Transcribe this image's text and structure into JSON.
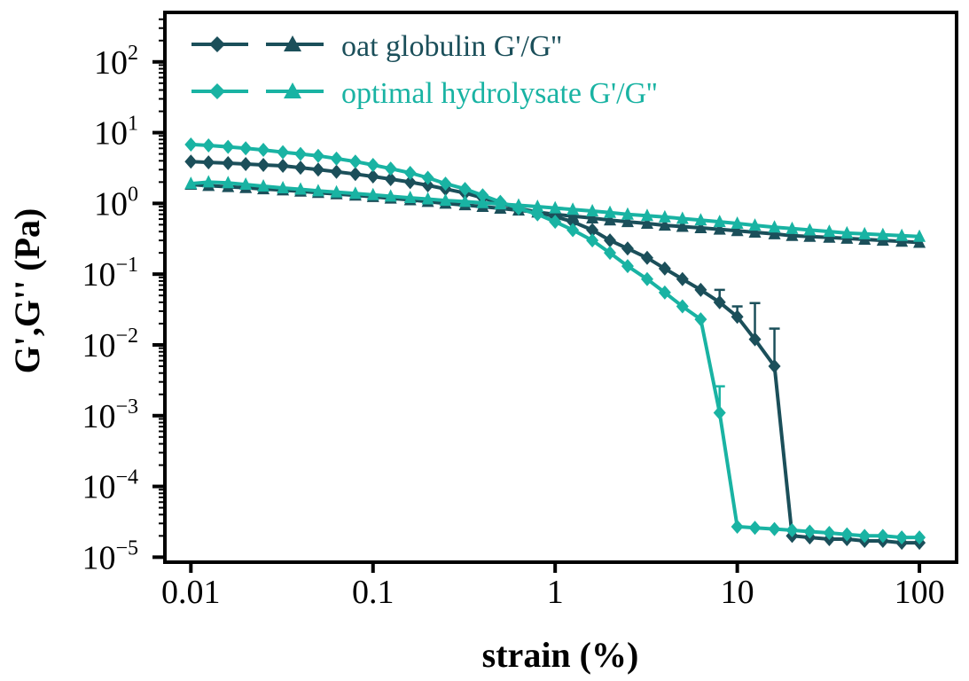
{
  "chart_data": {
    "type": "line",
    "x_scale": "log",
    "y_scale": "log",
    "xlabel": "strain (%)",
    "ylabel": "G',G'' (Pa)",
    "xlim": [
      0.0072,
      160
    ],
    "ylim": [
      8.5e-06,
      500
    ],
    "x_ticks": [
      {
        "value": 0.01,
        "label": "0.01"
      },
      {
        "value": 0.1,
        "label": "0.1"
      },
      {
        "value": 1,
        "label": "1"
      },
      {
        "value": 10,
        "label": "10"
      },
      {
        "value": 100,
        "label": "100"
      }
    ],
    "y_ticks": [
      {
        "value": 100,
        "base": "10",
        "exp": "2"
      },
      {
        "value": 10,
        "base": "10",
        "exp": "1"
      },
      {
        "value": 1,
        "base": "10",
        "exp": "0"
      },
      {
        "value": 0.1,
        "base": "10",
        "exp": "−1"
      },
      {
        "value": 0.01,
        "base": "10",
        "exp": "−2"
      },
      {
        "value": 0.001,
        "base": "10",
        "exp": "−3"
      },
      {
        "value": 0.0001,
        "base": "10",
        "exp": "−4"
      },
      {
        "value": 1e-05,
        "base": "10",
        "exp": "−5"
      }
    ],
    "legend": {
      "placement": "top-left",
      "entries": [
        {
          "label": "oat globulin G'/G''",
          "color": "#1b4f5a"
        },
        {
          "label": "optimal hydrolysate G'/G''",
          "color": "#19b3a3"
        }
      ]
    },
    "colors": {
      "oat": "#1b4f5a",
      "hydro": "#19b3a3"
    },
    "series": [
      {
        "name": "oat globulin G'",
        "color": "#1b4f5a",
        "marker": "diamond",
        "x": [
          0.01,
          0.0125,
          0.016,
          0.02,
          0.025,
          0.032,
          0.04,
          0.05,
          0.063,
          0.08,
          0.1,
          0.125,
          0.16,
          0.2,
          0.25,
          0.32,
          0.4,
          0.5,
          0.63,
          0.8,
          1.0,
          1.25,
          1.6,
          2.0,
          2.5,
          3.2,
          4.0,
          5.0,
          6.3,
          8.0,
          10,
          12.5,
          16,
          20,
          25,
          32,
          40,
          50,
          63,
          80,
          100
        ],
        "y": [
          3.9,
          3.8,
          3.7,
          3.6,
          3.5,
          3.4,
          3.2,
          3.0,
          2.8,
          2.6,
          2.4,
          2.2,
          2.0,
          1.8,
          1.6,
          1.4,
          1.2,
          1.0,
          0.85,
          0.75,
          0.65,
          0.55,
          0.42,
          0.3,
          0.23,
          0.17,
          0.12,
          0.085,
          0.06,
          0.04,
          0.025,
          0.012,
          0.005,
          2e-05,
          1.9e-05,
          1.8e-05,
          1.8e-05,
          1.7e-05,
          1.7e-05,
          1.6e-05,
          1.6e-05
        ],
        "err": [
          0,
          0,
          0,
          0,
          0,
          0,
          0,
          0,
          0,
          0,
          0,
          0,
          0,
          0,
          0,
          0,
          0,
          0,
          0,
          0,
          0,
          0,
          0,
          0,
          0,
          0,
          0,
          0,
          0,
          0.02,
          0.01,
          0.027,
          0.012,
          0,
          0,
          0,
          0,
          0,
          0,
          0,
          0
        ]
      },
      {
        "name": "oat globulin G''",
        "color": "#1b4f5a",
        "marker": "triangle",
        "x": [
          0.01,
          0.0125,
          0.016,
          0.02,
          0.025,
          0.032,
          0.04,
          0.05,
          0.063,
          0.08,
          0.1,
          0.125,
          0.16,
          0.2,
          0.25,
          0.32,
          0.4,
          0.5,
          0.63,
          0.8,
          1.0,
          1.25,
          1.6,
          2.0,
          2.5,
          3.2,
          4.0,
          5.0,
          6.3,
          8.0,
          10,
          12.5,
          16,
          20,
          25,
          32,
          40,
          50,
          63,
          80,
          100
        ],
        "y": [
          1.85,
          1.78,
          1.72,
          1.66,
          1.6,
          1.54,
          1.48,
          1.42,
          1.36,
          1.3,
          1.24,
          1.18,
          1.12,
          1.06,
          1.0,
          0.95,
          0.9,
          0.85,
          0.8,
          0.75,
          0.7,
          0.66,
          0.62,
          0.58,
          0.55,
          0.52,
          0.49,
          0.47,
          0.45,
          0.43,
          0.41,
          0.39,
          0.37,
          0.35,
          0.34,
          0.33,
          0.32,
          0.31,
          0.3,
          0.29,
          0.28
        ],
        "err": []
      },
      {
        "name": "optimal hydrolysate G'",
        "color": "#19b3a3",
        "marker": "diamond",
        "x": [
          0.01,
          0.0125,
          0.016,
          0.02,
          0.025,
          0.032,
          0.04,
          0.05,
          0.063,
          0.08,
          0.1,
          0.125,
          0.16,
          0.2,
          0.25,
          0.32,
          0.4,
          0.5,
          0.63,
          0.8,
          1.0,
          1.25,
          1.6,
          2.0,
          2.5,
          3.2,
          4.0,
          5.0,
          6.3,
          8.0,
          10,
          12.5,
          16,
          20,
          25,
          32,
          40,
          50,
          63,
          80,
          100
        ],
        "y": [
          6.8,
          6.6,
          6.3,
          6.0,
          5.7,
          5.3,
          5.0,
          4.7,
          4.3,
          3.9,
          3.5,
          3.1,
          2.7,
          2.3,
          1.9,
          1.6,
          1.3,
          1.05,
          0.85,
          0.7,
          0.55,
          0.42,
          0.3,
          0.2,
          0.13,
          0.085,
          0.055,
          0.035,
          0.023,
          0.0011,
          2.7e-05,
          2.6e-05,
          2.5e-05,
          2.4e-05,
          2.3e-05,
          2.2e-05,
          2.1e-05,
          2e-05,
          2e-05,
          1.9e-05,
          1.9e-05
        ],
        "err": [
          0,
          0,
          0,
          0,
          0,
          0,
          0,
          0,
          0,
          0,
          0,
          0,
          0,
          0,
          0,
          0,
          0,
          0,
          0,
          0,
          0,
          0,
          0,
          0,
          0,
          0,
          0,
          0,
          0,
          0.0015,
          0,
          0,
          0,
          0,
          0,
          0,
          0,
          0,
          0,
          0,
          0
        ]
      },
      {
        "name": "optimal hydrolysate G''",
        "color": "#19b3a3",
        "marker": "triangle",
        "x": [
          0.01,
          0.0125,
          0.016,
          0.02,
          0.025,
          0.032,
          0.04,
          0.05,
          0.063,
          0.08,
          0.1,
          0.125,
          0.16,
          0.2,
          0.25,
          0.32,
          0.4,
          0.5,
          0.63,
          0.8,
          1.0,
          1.25,
          1.6,
          2.0,
          2.5,
          3.2,
          4.0,
          5.0,
          6.3,
          8.0,
          10,
          12.5,
          16,
          20,
          25,
          32,
          40,
          50,
          63,
          80,
          100
        ],
        "y": [
          1.9,
          2.0,
          1.95,
          1.85,
          1.75,
          1.65,
          1.58,
          1.5,
          1.44,
          1.38,
          1.32,
          1.26,
          1.2,
          1.15,
          1.1,
          1.06,
          1.02,
          0.98,
          0.94,
          0.9,
          0.86,
          0.82,
          0.78,
          0.74,
          0.7,
          0.67,
          0.64,
          0.61,
          0.58,
          0.55,
          0.52,
          0.49,
          0.46,
          0.44,
          0.42,
          0.4,
          0.38,
          0.37,
          0.36,
          0.35,
          0.34
        ],
        "err": []
      }
    ]
  }
}
